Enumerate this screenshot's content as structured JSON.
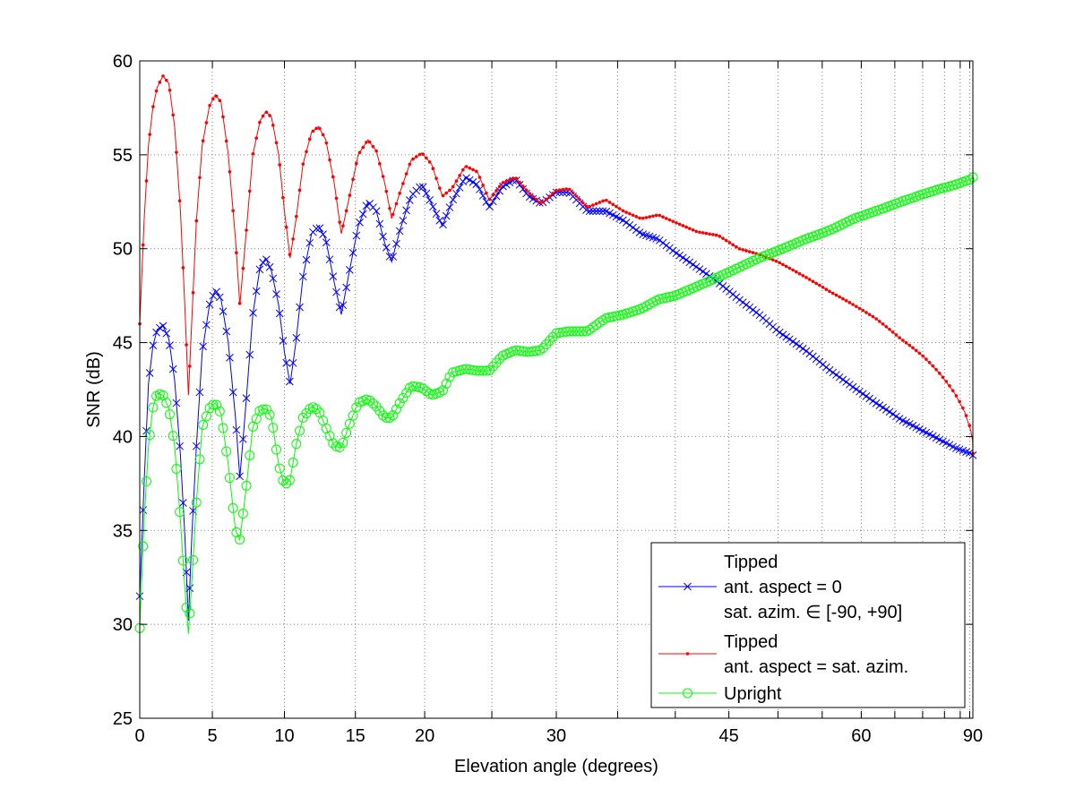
{
  "chart_data": {
    "type": "line",
    "title": "",
    "xlabel": "Elevation angle (degrees)",
    "ylabel": "SNR (dB)",
    "x_scale": "sin(elevation)",
    "xlim": [
      0,
      90
    ],
    "ylim": [
      25,
      60
    ],
    "x_major_ticks": [
      0,
      5,
      10,
      15,
      20,
      30,
      45,
      60,
      90
    ],
    "x_minor_grid": [
      25,
      35,
      40,
      50,
      55,
      65,
      70,
      75,
      80,
      85
    ],
    "y_ticks": [
      25,
      30,
      35,
      40,
      45,
      50,
      55,
      60
    ],
    "grid": true,
    "grid_style": "dotted",
    "legend_position": "bottom-right",
    "series": [
      {
        "name_lines": [
          "Tipped",
          "ant. aspect = 0",
          "sat. azim. ∈ [-90, +90]"
        ],
        "color": "#0000ff",
        "marker": "x",
        "points": [
          [
            0,
            31.5
          ],
          [
            0.3,
            37.5
          ],
          [
            0.6,
            42.8
          ],
          [
            0.9,
            44.8
          ],
          [
            1.2,
            45.7
          ],
          [
            1.6,
            45.9
          ],
          [
            2.0,
            45.2
          ],
          [
            2.4,
            43.0
          ],
          [
            2.8,
            39.0
          ],
          [
            3.1,
            34.8
          ],
          [
            3.35,
            30.2
          ],
          [
            3.6,
            35.0
          ],
          [
            3.9,
            39.5
          ],
          [
            4.3,
            44.5
          ],
          [
            4.8,
            47.0
          ],
          [
            5.2,
            47.8
          ],
          [
            5.6,
            47.3
          ],
          [
            6.1,
            45.0
          ],
          [
            6.6,
            41.0
          ],
          [
            6.9,
            37.8
          ],
          [
            7.3,
            41.5
          ],
          [
            7.8,
            46.5
          ],
          [
            8.3,
            49.0
          ],
          [
            8.7,
            49.5
          ],
          [
            9.1,
            48.8
          ],
          [
            9.6,
            47.0
          ],
          [
            10.0,
            44.5
          ],
          [
            10.4,
            42.8
          ],
          [
            10.8,
            45.0
          ],
          [
            11.3,
            48.5
          ],
          [
            11.9,
            50.8
          ],
          [
            12.4,
            51.2
          ],
          [
            12.9,
            50.5
          ],
          [
            13.5,
            48.2
          ],
          [
            14.0,
            46.5
          ],
          [
            14.5,
            48.5
          ],
          [
            15.2,
            51.2
          ],
          [
            15.9,
            52.5
          ],
          [
            16.5,
            52.0
          ],
          [
            17.1,
            50.3
          ],
          [
            17.6,
            49.3
          ],
          [
            18.2,
            51.0
          ],
          [
            19.0,
            52.8
          ],
          [
            19.8,
            53.4
          ],
          [
            20.5,
            52.4
          ],
          [
            21.3,
            51.2
          ],
          [
            22.0,
            52.5
          ],
          [
            23.0,
            53.8
          ],
          [
            23.9,
            53.4
          ],
          [
            24.8,
            52.2
          ],
          [
            25.8,
            53.3
          ],
          [
            26.8,
            53.7
          ],
          [
            27.8,
            52.8
          ],
          [
            28.8,
            52.4
          ],
          [
            30.0,
            53.0
          ],
          [
            31.0,
            53.0
          ],
          [
            32.5,
            52.0
          ],
          [
            34.0,
            52.0
          ],
          [
            35.5,
            51.5
          ],
          [
            37.0,
            50.8
          ],
          [
            38.5,
            50.5
          ],
          [
            40.0,
            49.8
          ],
          [
            42.0,
            49.0
          ],
          [
            44.0,
            48.2
          ],
          [
            46.0,
            47.3
          ],
          [
            48.0,
            46.5
          ],
          [
            50.0,
            45.6
          ],
          [
            53.0,
            44.6
          ],
          [
            56.0,
            43.5
          ],
          [
            59.0,
            42.6
          ],
          [
            62.0,
            41.8
          ],
          [
            66.0,
            40.9
          ],
          [
            70.0,
            40.3
          ],
          [
            74.0,
            39.8
          ],
          [
            78.0,
            39.4
          ],
          [
            82.0,
            39.2
          ],
          [
            86.0,
            39.1
          ],
          [
            90.0,
            39.0
          ]
        ]
      },
      {
        "name_lines": [
          "Tipped",
          "ant. aspect = sat. azim."
        ],
        "color": "#ff0000",
        "marker": "dot",
        "points": [
          [
            0,
            46.0
          ],
          [
            0.3,
            51.5
          ],
          [
            0.6,
            55.5
          ],
          [
            0.9,
            57.5
          ],
          [
            1.2,
            58.6
          ],
          [
            1.6,
            59.2
          ],
          [
            2.0,
            58.8
          ],
          [
            2.4,
            56.5
          ],
          [
            2.8,
            52.0
          ],
          [
            3.1,
            47.0
          ],
          [
            3.35,
            42.2
          ],
          [
            3.6,
            46.5
          ],
          [
            3.9,
            51.5
          ],
          [
            4.3,
            55.5
          ],
          [
            4.8,
            57.6
          ],
          [
            5.2,
            58.2
          ],
          [
            5.6,
            57.8
          ],
          [
            6.1,
            55.0
          ],
          [
            6.6,
            50.5
          ],
          [
            6.9,
            47.0
          ],
          [
            7.3,
            50.5
          ],
          [
            7.8,
            55.0
          ],
          [
            8.3,
            56.8
          ],
          [
            8.7,
            57.3
          ],
          [
            9.1,
            57.0
          ],
          [
            9.6,
            55.0
          ],
          [
            10.0,
            52.0
          ],
          [
            10.4,
            49.5
          ],
          [
            10.8,
            51.5
          ],
          [
            11.3,
            54.5
          ],
          [
            11.9,
            56.2
          ],
          [
            12.4,
            56.5
          ],
          [
            12.9,
            55.8
          ],
          [
            13.5,
            53.5
          ],
          [
            14.0,
            50.8
          ],
          [
            14.5,
            52.5
          ],
          [
            15.2,
            55.0
          ],
          [
            15.9,
            55.8
          ],
          [
            16.5,
            55.2
          ],
          [
            17.1,
            53.5
          ],
          [
            17.6,
            51.6
          ],
          [
            18.2,
            53.0
          ],
          [
            19.0,
            54.7
          ],
          [
            19.8,
            55.1
          ],
          [
            20.5,
            54.5
          ],
          [
            21.3,
            52.8
          ],
          [
            22.0,
            53.2
          ],
          [
            23.0,
            54.4
          ],
          [
            23.9,
            54.1
          ],
          [
            24.8,
            52.6
          ],
          [
            25.8,
            53.5
          ],
          [
            26.8,
            53.8
          ],
          [
            27.8,
            53.0
          ],
          [
            28.8,
            52.4
          ],
          [
            30.0,
            53.1
          ],
          [
            31.0,
            53.2
          ],
          [
            32.5,
            52.2
          ],
          [
            34.0,
            52.6
          ],
          [
            35.5,
            52.0
          ],
          [
            37.0,
            51.6
          ],
          [
            38.5,
            51.8
          ],
          [
            40.0,
            51.4
          ],
          [
            42.0,
            50.9
          ],
          [
            44.0,
            50.7
          ],
          [
            46.0,
            50.0
          ],
          [
            48.0,
            49.7
          ],
          [
            50.0,
            49.3
          ],
          [
            53.0,
            48.5
          ],
          [
            56.0,
            47.7
          ],
          [
            59.0,
            47.0
          ],
          [
            62.0,
            46.3
          ],
          [
            66.0,
            45.2
          ],
          [
            70.0,
            44.3
          ],
          [
            74.0,
            43.3
          ],
          [
            78.0,
            42.3
          ],
          [
            82.0,
            41.3
          ],
          [
            86.0,
            40.3
          ],
          [
            88.5,
            39.8
          ],
          [
            90.0,
            39.1
          ]
        ]
      },
      {
        "name_lines": [
          "Upright"
        ],
        "color": "#00ff00",
        "marker": "circle",
        "points": [
          [
            0,
            29.8
          ],
          [
            0.3,
            35.5
          ],
          [
            0.6,
            39.5
          ],
          [
            0.9,
            41.5
          ],
          [
            1.2,
            42.3
          ],
          [
            1.6,
            42.2
          ],
          [
            2.0,
            41.5
          ],
          [
            2.4,
            39.5
          ],
          [
            2.8,
            35.5
          ],
          [
            3.1,
            32.0
          ],
          [
            3.35,
            29.5
          ],
          [
            3.6,
            32.5
          ],
          [
            3.9,
            36.5
          ],
          [
            4.3,
            40.5
          ],
          [
            4.8,
            41.5
          ],
          [
            5.2,
            41.8
          ],
          [
            5.6,
            41.2
          ],
          [
            6.1,
            38.5
          ],
          [
            6.6,
            35.0
          ],
          [
            6.9,
            34.5
          ],
          [
            7.3,
            37.0
          ],
          [
            7.8,
            40.5
          ],
          [
            8.3,
            41.4
          ],
          [
            8.7,
            41.5
          ],
          [
            9.1,
            41.0
          ],
          [
            9.6,
            38.5
          ],
          [
            10.0,
            37.4
          ],
          [
            10.4,
            37.7
          ],
          [
            10.8,
            39.5
          ],
          [
            11.3,
            41.0
          ],
          [
            11.9,
            41.6
          ],
          [
            12.4,
            41.4
          ],
          [
            12.9,
            40.5
          ],
          [
            13.5,
            39.5
          ],
          [
            14.0,
            39.4
          ],
          [
            14.5,
            40.5
          ],
          [
            15.2,
            41.8
          ],
          [
            15.9,
            42.0
          ],
          [
            16.5,
            41.6
          ],
          [
            17.1,
            41.0
          ],
          [
            17.6,
            41.0
          ],
          [
            18.2,
            41.8
          ],
          [
            19.0,
            42.7
          ],
          [
            19.8,
            42.6
          ],
          [
            20.5,
            42.2
          ],
          [
            21.3,
            42.4
          ],
          [
            22.0,
            43.4
          ],
          [
            23.0,
            43.6
          ],
          [
            23.9,
            43.5
          ],
          [
            24.8,
            43.5
          ],
          [
            25.8,
            44.3
          ],
          [
            26.8,
            44.6
          ],
          [
            27.8,
            44.5
          ],
          [
            28.8,
            44.6
          ],
          [
            30.0,
            45.5
          ],
          [
            31.0,
            45.6
          ],
          [
            32.5,
            45.6
          ],
          [
            34.0,
            46.3
          ],
          [
            35.5,
            46.5
          ],
          [
            37.0,
            46.8
          ],
          [
            38.5,
            47.3
          ],
          [
            40.0,
            47.5
          ],
          [
            42.0,
            48.0
          ],
          [
            44.0,
            48.5
          ],
          [
            46.0,
            49.0
          ],
          [
            48.0,
            49.5
          ],
          [
            50.0,
            49.9
          ],
          [
            53.0,
            50.5
          ],
          [
            56.0,
            51.0
          ],
          [
            59.0,
            51.6
          ],
          [
            62.0,
            52.0
          ],
          [
            66.0,
            52.5
          ],
          [
            70.0,
            52.9
          ],
          [
            74.0,
            53.2
          ],
          [
            78.0,
            53.4
          ],
          [
            82.0,
            53.6
          ],
          [
            86.0,
            53.7
          ],
          [
            90.0,
            53.8
          ]
        ]
      }
    ]
  }
}
